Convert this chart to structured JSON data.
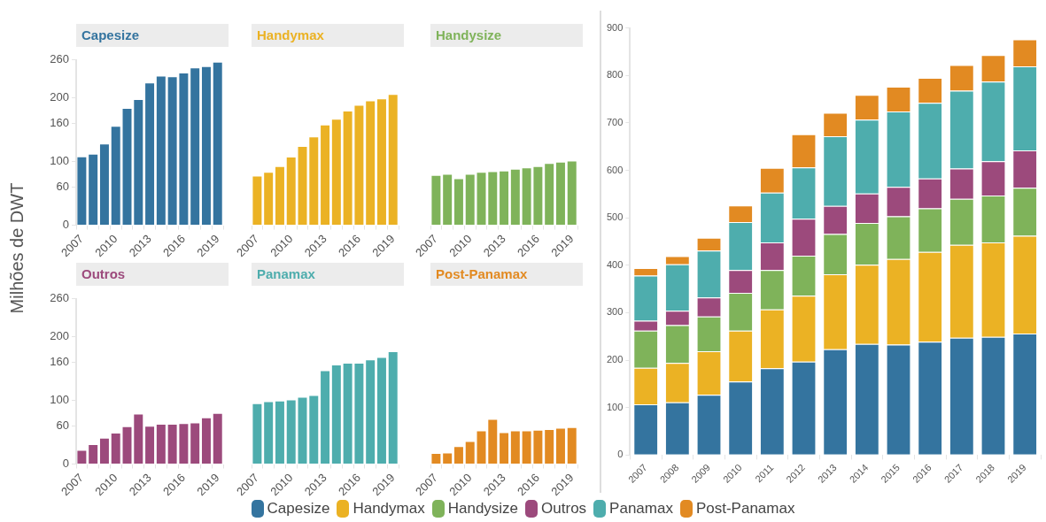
{
  "chart_data": [
    {
      "type": "bar",
      "title": "Capesize",
      "ylabel": "Milhões de DWT",
      "categories": [
        "2007",
        null,
        null,
        "2010",
        null,
        null,
        "2013",
        null,
        null,
        "2016",
        null,
        null,
        "2019"
      ],
      "color": "#34749f",
      "values": [
        107,
        111,
        127,
        155,
        183,
        197,
        223,
        234,
        233,
        239,
        247,
        249,
        256
      ],
      "ylim": [
        0,
        260
      ],
      "yticks": [
        0,
        60,
        100,
        160,
        200,
        260
      ],
      "grid": false
    },
    {
      "type": "bar",
      "title": "Handymax",
      "categories": [
        "2007",
        null,
        null,
        "2010",
        null,
        null,
        "2013",
        null,
        null,
        "2016",
        null,
        null,
        "2019"
      ],
      "color": "#ebb224",
      "values": [
        77,
        83,
        92,
        107,
        124,
        139,
        158,
        167,
        180,
        189,
        196,
        199,
        206
      ],
      "ylim": [
        0,
        260
      ],
      "yticks": [
        0,
        60,
        100,
        160,
        200,
        260
      ],
      "grid": false,
      "tick_labels": "x"
    },
    {
      "type": "bar",
      "title": "Handysize",
      "categories": [
        "2007",
        null,
        null,
        "2010",
        null,
        null,
        "2013",
        null,
        null,
        "2016",
        null,
        null,
        "2019"
      ],
      "color": "#7fb35a",
      "values": [
        78,
        80,
        73,
        80,
        83,
        84,
        85,
        88,
        90,
        92,
        97,
        99,
        101
      ],
      "ylim": [
        0,
        260
      ],
      "yticks": [
        0,
        60,
        100,
        160,
        200,
        260
      ],
      "grid": false,
      "tick_labels": "x"
    },
    {
      "type": "bar",
      "title": "Outros",
      "categories": [
        "2007",
        null,
        null,
        "2010",
        null,
        null,
        "2013",
        null,
        null,
        "2016",
        null,
        null,
        "2019"
      ],
      "color": "#9c4a7c",
      "values": [
        21,
        30,
        40,
        48,
        58,
        78,
        59,
        62,
        62,
        63,
        64,
        72,
        79
      ],
      "ylim": [
        0,
        260
      ],
      "yticks": [
        0,
        60,
        100,
        160,
        200,
        260
      ],
      "grid": false
    },
    {
      "type": "bar",
      "title": "Panamax",
      "categories": [
        "2007",
        null,
        null,
        "2010",
        null,
        null,
        "2013",
        null,
        null,
        "2016",
        null,
        null,
        "2019"
      ],
      "color": "#4eadad",
      "values": [
        95,
        98,
        99,
        101,
        105,
        108,
        147,
        156,
        159,
        159,
        164,
        168,
        177
      ],
      "ylim": [
        0,
        260
      ],
      "yticks": [
        0,
        60,
        100,
        160,
        200,
        260
      ],
      "grid": false,
      "tick_labels": "x"
    },
    {
      "type": "bar",
      "title": "Post-Panamax",
      "categories": [
        "2007",
        null,
        null,
        "2010",
        null,
        null,
        "2013",
        null,
        null,
        "2016",
        null,
        null,
        "2019"
      ],
      "color": "#e28a22",
      "values": [
        16,
        17,
        27,
        35,
        52,
        70,
        49,
        52,
        52,
        53,
        54,
        56,
        57
      ],
      "ylim": [
        0,
        260
      ],
      "yticks": [
        0,
        60,
        100,
        160,
        200,
        260
      ],
      "grid": false,
      "tick_labels": "x"
    },
    {
      "type": "bar",
      "stacked": true,
      "categories": [
        "2007",
        "2008",
        "2009",
        "2010",
        "2011",
        "2012",
        "2013",
        "2014",
        "2015",
        "2016",
        "2017",
        "2018",
        "2019"
      ],
      "ylim": [
        0,
        900
      ],
      "yticks": [
        0,
        100,
        200,
        300,
        400,
        500,
        600,
        700,
        800,
        900
      ],
      "grid": false,
      "legend": "bottom",
      "series": [
        {
          "name": "Capesize",
          "color": "#34749f",
          "values": [
            107,
            111,
            127,
            155,
            183,
            197,
            223,
            234,
            233,
            239,
            247,
            249,
            256
          ]
        },
        {
          "name": "Handymax",
          "color": "#ebb224",
          "values": [
            77,
            83,
            92,
            107,
            124,
            139,
            158,
            167,
            180,
            189,
            196,
            199,
            206
          ]
        },
        {
          "name": "Handysize",
          "color": "#7fb35a",
          "values": [
            78,
            80,
            73,
            80,
            83,
            84,
            85,
            88,
            90,
            92,
            97,
            99,
            101
          ]
        },
        {
          "name": "Outros",
          "color": "#9c4a7c",
          "values": [
            21,
            30,
            40,
            48,
            58,
            78,
            59,
            62,
            62,
            63,
            64,
            72,
            79
          ]
        },
        {
          "name": "Panamax",
          "color": "#4eadad",
          "values": [
            95,
            98,
            99,
            101,
            105,
            108,
            147,
            156,
            159,
            159,
            164,
            168,
            177
          ]
        },
        {
          "name": "Post-Panamax",
          "color": "#e28a22",
          "values": [
            16,
            17,
            27,
            35,
            52,
            70,
            49,
            52,
            52,
            53,
            54,
            56,
            57
          ]
        }
      ]
    }
  ]
}
